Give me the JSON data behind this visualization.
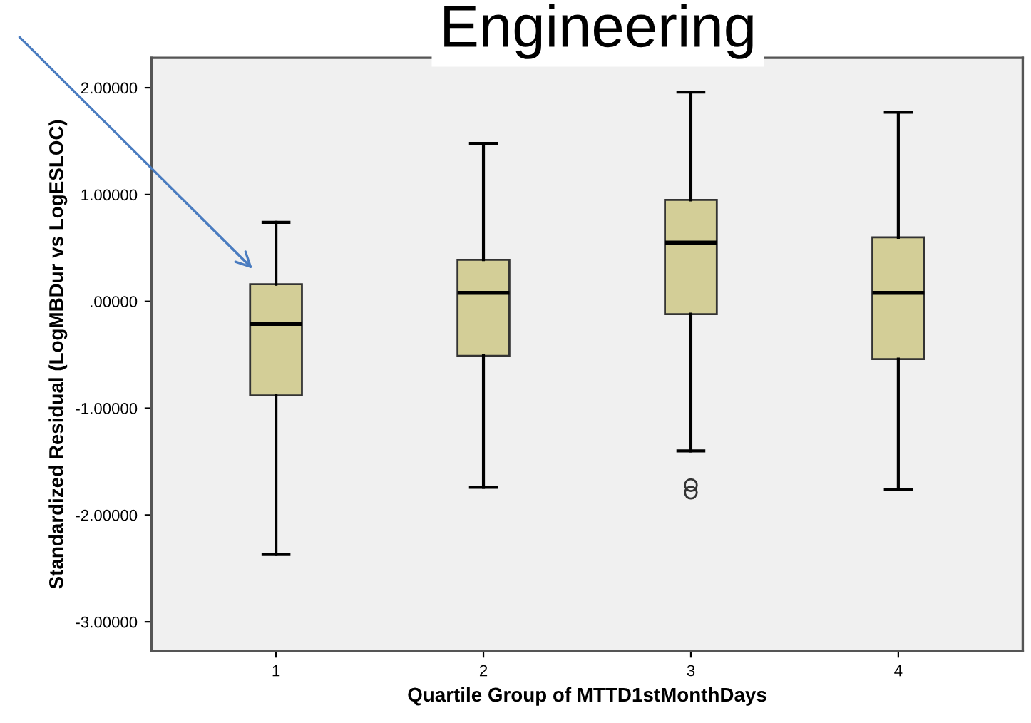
{
  "chart_data": {
    "type": "box",
    "title": "Engineering",
    "xlabel": "Quartile Group of MTTD1stMonthDays",
    "ylabel": "Standardized Residual (LogMBDur vs LogESLOC)",
    "categories": [
      "1",
      "2",
      "3",
      "4"
    ],
    "color": "#d3ce97",
    "boxes": [
      {
        "low": -2.37,
        "q1": -0.88,
        "median": -0.21,
        "q3": 0.16,
        "high": 0.74
      },
      {
        "low": -1.74,
        "q1": -0.51,
        "median": 0.08,
        "q3": 0.39,
        "high": 1.48
      },
      {
        "low": -1.4,
        "q1": -0.12,
        "median": 0.55,
        "q3": 0.95,
        "high": 1.96,
        "outliers": [
          -1.72,
          -1.79
        ]
      },
      {
        "low": -1.76,
        "q1": -0.54,
        "median": 0.08,
        "q3": 0.6,
        "high": 1.77
      }
    ],
    "ylim": [
      -3.27,
      2.28
    ],
    "yticks": [
      {
        "value": -3,
        "label": "-3.00000"
      },
      {
        "value": -2,
        "label": "-2.00000"
      },
      {
        "value": -1,
        "label": "-1.00000"
      },
      {
        "value": 0,
        "label": ".00000"
      },
      {
        "value": 1,
        "label": "1.00000"
      },
      {
        "value": 2,
        "label": "2.00000"
      }
    ],
    "grid": false
  }
}
